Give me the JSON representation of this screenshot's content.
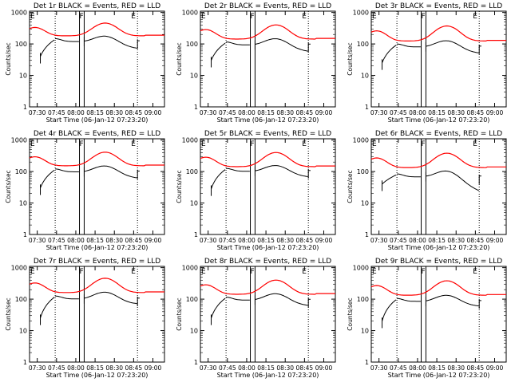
{
  "figure": {
    "x_ticks": [
      "07:30",
      "07:45",
      "08:00",
      "08:15",
      "08:30",
      "08:45",
      "09:00"
    ],
    "y_ticks": [
      "1",
      "10",
      "100",
      "1000"
    ],
    "xlabel": "Start Time (06-Jan-12 07:23:20)",
    "ylabel": "Counts/sec",
    "colors": {
      "events": "#000000",
      "lld": "#ff0000",
      "axes": "#000000"
    }
  },
  "chart_data": [
    {
      "type": "line",
      "title": "Det 1r BLACK = Events, RED = LLD",
      "flag_left": "E",
      "flag_mid": "F",
      "flag_right": "E",
      "series": [
        {
          "name": "Events",
          "color": "#000000",
          "base": 140,
          "rise": 80,
          "dip": 40
        },
        {
          "name": "LLD",
          "color": "#ff0000",
          "base": 190,
          "rise": 280
        }
      ],
      "xlim": [
        0,
        100
      ],
      "ylim": [
        1,
        1100
      ],
      "yscale": "log"
    },
    {
      "type": "line",
      "title": "Det 2r BLACK = Events, RED = LLD",
      "flag_left": "E",
      "flag_mid": "F",
      "flag_right": "E",
      "series": [
        {
          "name": "Events",
          "color": "#000000",
          "base": 110,
          "rise": 70,
          "dip": 30
        },
        {
          "name": "LLD",
          "color": "#ff0000",
          "base": 150,
          "rise": 260
        }
      ],
      "xlim": [
        0,
        100
      ],
      "ylim": [
        1,
        1100
      ],
      "yscale": "log"
    },
    {
      "type": "line",
      "title": "Det 3r BLACK = Events, RED = LLD",
      "flag_left": "E",
      "flag_mid": "F",
      "flag_right": "E",
      "series": [
        {
          "name": "Events",
          "color": "#000000",
          "base": 95,
          "rise": 60,
          "dip": 25
        },
        {
          "name": "LLD",
          "color": "#ff0000",
          "base": 130,
          "rise": 250
        }
      ],
      "xlim": [
        0,
        100
      ],
      "ylim": [
        1,
        1100
      ],
      "yscale": "log"
    },
    {
      "type": "line",
      "title": "Det 4r BLACK = Events, RED = LLD",
      "flag_left": "E",
      "flag_mid": "F",
      "flag_right": "E",
      "series": [
        {
          "name": "Events",
          "color": "#000000",
          "base": 115,
          "rise": 70,
          "dip": 30
        },
        {
          "name": "LLD",
          "color": "#ff0000",
          "base": 160,
          "rise": 260
        }
      ],
      "xlim": [
        0,
        100
      ],
      "ylim": [
        1,
        1100
      ],
      "yscale": "log"
    },
    {
      "type": "line",
      "title": "Det 5r BLACK = Events, RED = LLD",
      "flag_left": "E",
      "flag_mid": "F",
      "flag_right": "E",
      "series": [
        {
          "name": "Events",
          "color": "#000000",
          "base": 120,
          "rise": 70,
          "dip": 28
        },
        {
          "name": "LLD",
          "color": "#ff0000",
          "base": 150,
          "rise": 260
        }
      ],
      "xlim": [
        0,
        100
      ],
      "ylim": [
        1,
        1100
      ],
      "yscale": "log"
    },
    {
      "type": "line",
      "title": "Det 6r BLACK = Events, RED = LLD",
      "flag_left": "E",
      "flag_mid": "F",
      "flag_right": "E",
      "series": [
        {
          "name": "Events",
          "color": "#000000",
          "base": 80,
          "rise": 55,
          "dip": 40
        },
        {
          "name": "LLD",
          "color": "#ff0000",
          "base": 140,
          "rise": 250
        }
      ],
      "xlim": [
        0,
        100
      ],
      "ylim": [
        1,
        1100
      ],
      "yscale": "log"
    },
    {
      "type": "line",
      "title": "Det 7r BLACK = Events, RED = LLD",
      "flag_left": "E",
      "flag_mid": "F",
      "flag_right": "E",
      "series": [
        {
          "name": "Events",
          "color": "#000000",
          "base": 120,
          "rise": 80,
          "dip": 25
        },
        {
          "name": "LLD",
          "color": "#ff0000",
          "base": 170,
          "rise": 300
        }
      ],
      "xlim": [
        0,
        100
      ],
      "ylim": [
        1,
        1100
      ],
      "yscale": "log"
    },
    {
      "type": "line",
      "title": "Det 8r BLACK = Events, RED = LLD",
      "flag_left": "E",
      "flag_mid": "F",
      "flag_right": "E",
      "series": [
        {
          "name": "Events",
          "color": "#000000",
          "base": 110,
          "rise": 70,
          "dip": 25
        },
        {
          "name": "LLD",
          "color": "#ff0000",
          "base": 150,
          "rise": 260
        }
      ],
      "xlim": [
        0,
        100
      ],
      "ylim": [
        1,
        1100
      ],
      "yscale": "log"
    },
    {
      "type": "line",
      "title": "Det 9r BLACK = Events, RED = LLD",
      "flag_left": "E",
      "flag_mid": "F",
      "flag_right": "E",
      "series": [
        {
          "name": "Events",
          "color": "#000000",
          "base": 100,
          "rise": 60,
          "dip": 20
        },
        {
          "name": "LLD",
          "color": "#ff0000",
          "base": 140,
          "rise": 250
        }
      ],
      "xlim": [
        0,
        100
      ],
      "ylim": [
        1,
        1100
      ],
      "yscale": "log"
    }
  ]
}
